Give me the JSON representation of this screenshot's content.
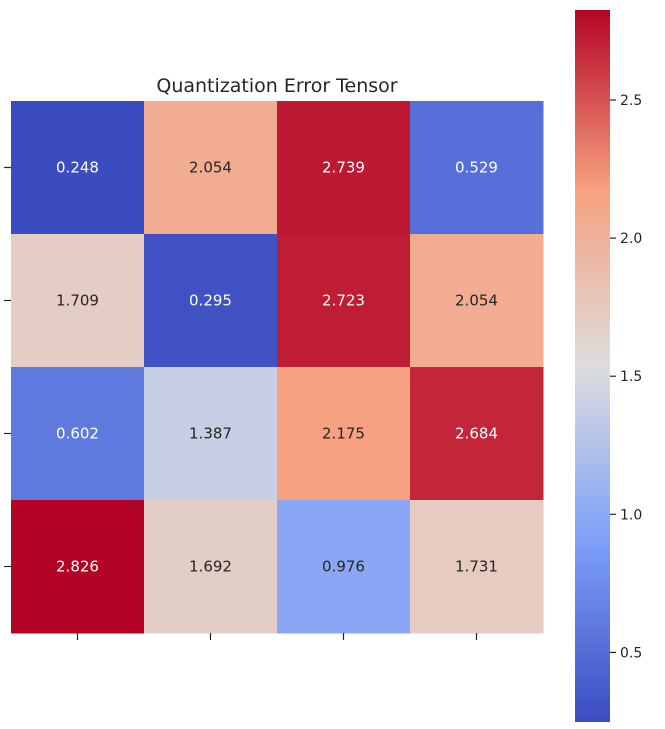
{
  "chart_data": {
    "type": "heatmap",
    "title": "Quantization Error Tensor",
    "rows": 4,
    "cols": 4,
    "values": [
      [
        0.248,
        2.054,
        2.739,
        0.529
      ],
      [
        1.709,
        0.295,
        2.723,
        2.054
      ],
      [
        0.602,
        1.387,
        2.175,
        2.684
      ],
      [
        2.826,
        1.692,
        0.976,
        1.731
      ]
    ],
    "value_labels": [
      [
        "0.248",
        "2.054",
        "2.739",
        "0.529"
      ],
      [
        "1.709",
        "0.295",
        "2.723",
        "2.054"
      ],
      [
        "0.602",
        "1.387",
        "2.175",
        "2.684"
      ],
      [
        "2.826",
        "1.692",
        "0.976",
        "1.731"
      ]
    ],
    "x_tick_labels": [
      "",
      "",
      "",
      ""
    ],
    "y_tick_labels": [
      "",
      "",
      "",
      ""
    ],
    "colormap": "coolwarm",
    "color_range": [
      0.248,
      2.826
    ],
    "colorbar_ticks": [
      "0.5",
      "1.0",
      "1.5",
      "2.0",
      "2.5"
    ],
    "colorbar_tick_values": [
      0.5,
      1.0,
      1.5,
      2.0,
      2.5
    ],
    "grid": false,
    "colors": {
      "low": "#3b4cc0",
      "mid": "#dddddd",
      "high": "#b40426",
      "text_light": "#ffffff",
      "text_dark": "#262626"
    }
  }
}
